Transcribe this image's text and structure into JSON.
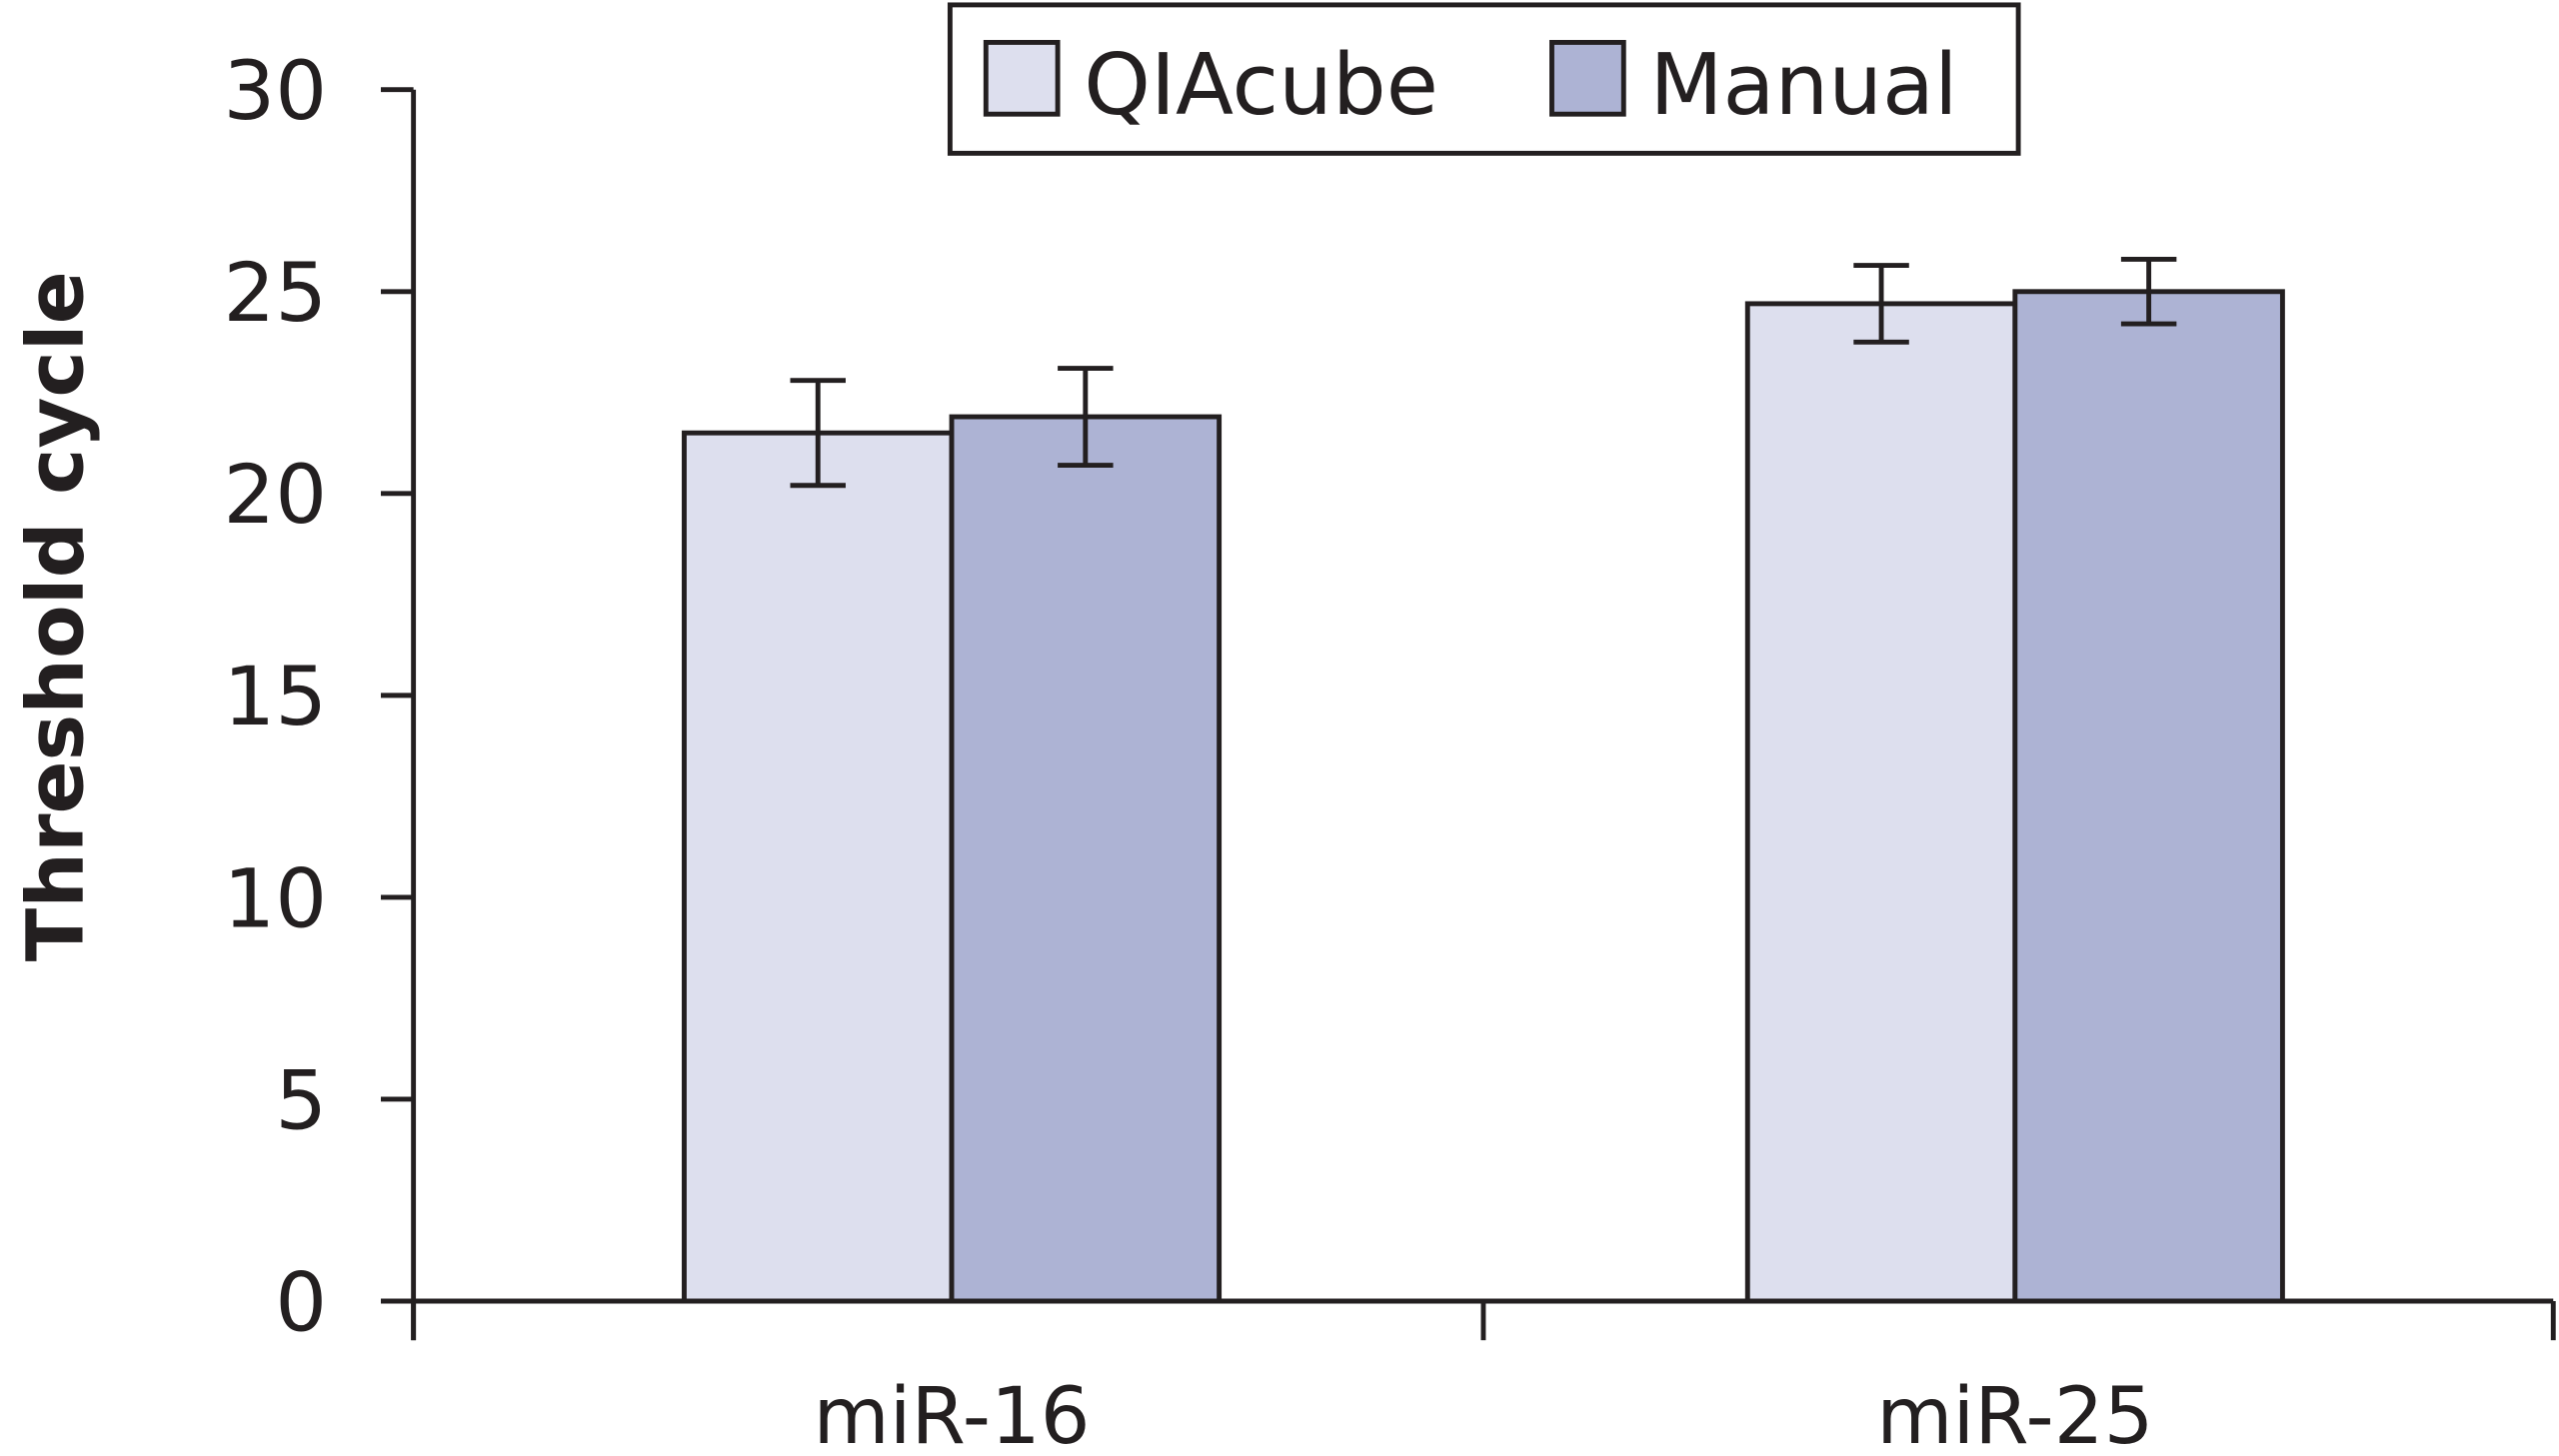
{
  "chart_data": {
    "type": "bar",
    "title": "",
    "xlabel": "",
    "ylabel": "Threshold cycle",
    "ylim": [
      0,
      30
    ],
    "yticks": [
      0,
      5,
      10,
      15,
      20,
      25,
      30
    ],
    "ytick_labels": [
      "0",
      "5",
      "10",
      "15",
      "20",
      "25",
      "30"
    ],
    "categories": [
      "miR-16",
      "miR-25"
    ],
    "series": [
      {
        "name": "QIAcube",
        "color": "#dddfee",
        "values": [
          21.5,
          24.7
        ],
        "errors": [
          1.3,
          0.95
        ]
      },
      {
        "name": "Manual",
        "color": "#adb3d4",
        "values": [
          21.9,
          25.0
        ],
        "errors": [
          1.2,
          0.8
        ]
      }
    ],
    "legend": {
      "placement": "top-center",
      "entries": [
        "QIAcube",
        "Manual"
      ]
    },
    "grid": false
  }
}
